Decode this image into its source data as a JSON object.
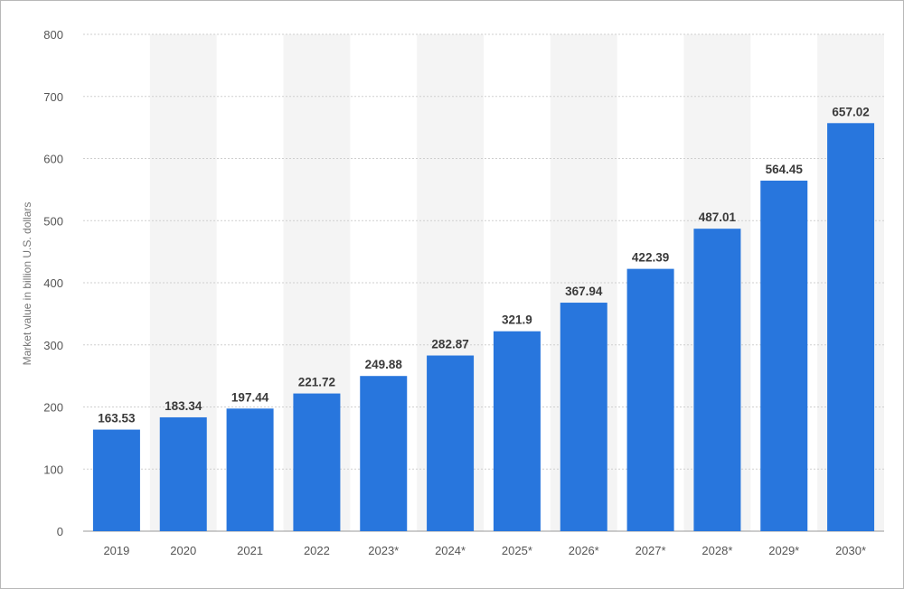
{
  "chart_data": {
    "type": "bar",
    "title": "",
    "xlabel": "",
    "ylabel": "Market value in billion U.S. dollars",
    "ylim": [
      0,
      800
    ],
    "yticks": [
      0,
      100,
      200,
      300,
      400,
      500,
      600,
      700,
      800
    ],
    "grid": true,
    "categories": [
      "2019",
      "2020",
      "2021",
      "2022",
      "2023*",
      "2024*",
      "2025*",
      "2026*",
      "2027*",
      "2028*",
      "2029*",
      "2030*"
    ],
    "values": [
      163.53,
      183.34,
      197.44,
      221.72,
      249.88,
      282.87,
      321.9,
      367.94,
      422.39,
      487.01,
      564.45,
      657.02
    ],
    "value_labels": [
      "163.53",
      "183.34",
      "197.44",
      "221.72",
      "249.88",
      "282.87",
      "321.9",
      "367.94",
      "422.39",
      "487.01",
      "564.45",
      "657.02"
    ],
    "bar_color": "#2876dd",
    "alt_band_color": "#f4f4f4",
    "grid_color": "#cfcfcf"
  }
}
